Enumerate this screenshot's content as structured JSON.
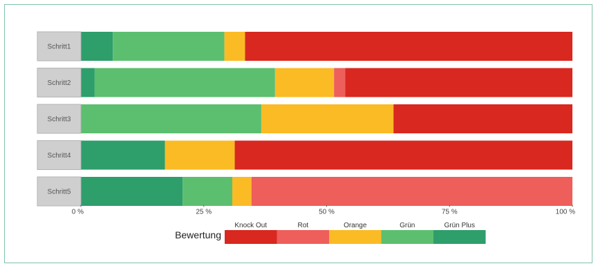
{
  "chart_data": {
    "type": "bar",
    "orientation": "horizontal",
    "stacked": true,
    "categories": [
      "Schritt1",
      "Schritt2",
      "Schritt3",
      "Schritt4",
      "Schritt5"
    ],
    "series": [
      {
        "name": "Grün Plus",
        "color": "#2e9e6a",
        "values": [
          6.5,
          2.8,
          0,
          17.1,
          20.7
        ]
      },
      {
        "name": "Grün",
        "color": "#5cbf6f",
        "values": [
          22.7,
          36.7,
          36.7,
          0,
          10.1
        ]
      },
      {
        "name": "Orange",
        "color": "#fbbb25",
        "values": [
          4.2,
          12.0,
          26.9,
          14.2,
          3.9
        ]
      },
      {
        "name": "Rot",
        "color": "#ee5e5a",
        "values": [
          0,
          2.3,
          0,
          0,
          65.3
        ]
      },
      {
        "name": "Knock Out",
        "color": "#d8281f",
        "values": [
          66.6,
          46.2,
          36.4,
          68.7,
          0
        ]
      }
    ],
    "xlim": [
      0,
      100
    ],
    "x_ticks": [
      "0 %",
      "25 %",
      "50 %",
      "75 %",
      "100 %"
    ],
    "legend": {
      "title": "Bewertung",
      "placement": "bottom",
      "entries": [
        "Knock Out",
        "Rot",
        "Orange",
        "Grün",
        "Grün Plus"
      ]
    }
  }
}
